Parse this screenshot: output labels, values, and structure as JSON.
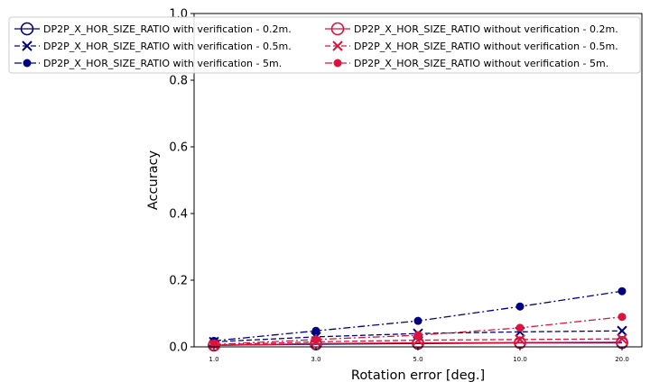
{
  "chart_data": {
    "type": "line",
    "xlabel": "Rotation error [deg.]",
    "ylabel": "Accuracy",
    "x": [
      1.0,
      3.0,
      5.0,
      10.0,
      20.0
    ],
    "x_tick_labels": [
      "1.0",
      "3.0",
      "5.0",
      "10.0",
      "20.0"
    ],
    "x_scale": "categorical",
    "ylim": [
      0,
      1.0
    ],
    "y_ticks": [
      0.0,
      0.2,
      0.4,
      0.6,
      0.8,
      1.0
    ],
    "y_tick_labels": [
      "0.0",
      "0.2",
      "0.4",
      "0.6",
      "0.8",
      "1.0"
    ],
    "grid": false,
    "legend_position": "top",
    "colors": {
      "with": "#000080",
      "without": "#dc143c"
    },
    "series": [
      {
        "name": "DP2P_X_HOR_SIZE_RATIO with verification - 0.2m.",
        "group": "with",
        "marker": "open-circle",
        "linestyle": "solid",
        "values": [
          0.005,
          0.008,
          0.01,
          0.012,
          0.012
        ]
      },
      {
        "name": "DP2P_X_HOR_SIZE_RATIO with verification - 0.5m.",
        "group": "with",
        "marker": "x",
        "linestyle": "dashed",
        "values": [
          0.015,
          0.03,
          0.04,
          0.045,
          0.048
        ]
      },
      {
        "name": "DP2P_X_HOR_SIZE_RATIO with verification - 5m.",
        "group": "with",
        "marker": "filled-circle",
        "linestyle": "dashdot",
        "values": [
          0.018,
          0.048,
          0.078,
          0.121,
          0.167
        ]
      },
      {
        "name": "DP2P_X_HOR_SIZE_RATIO without verification - 0.2m.",
        "group": "without",
        "marker": "open-circle",
        "linestyle": "solid",
        "values": [
          0.004,
          0.01,
          0.012,
          0.013,
          0.014
        ]
      },
      {
        "name": "DP2P_X_HOR_SIZE_RATIO without verification - 0.5m.",
        "group": "without",
        "marker": "x",
        "linestyle": "dashed",
        "values": [
          0.006,
          0.015,
          0.02,
          0.022,
          0.024
        ]
      },
      {
        "name": "DP2P_X_HOR_SIZE_RATIO without verification - 5m.",
        "group": "without",
        "marker": "filled-circle",
        "linestyle": "dashdot",
        "values": [
          0.007,
          0.022,
          0.035,
          0.057,
          0.09
        ]
      }
    ]
  }
}
